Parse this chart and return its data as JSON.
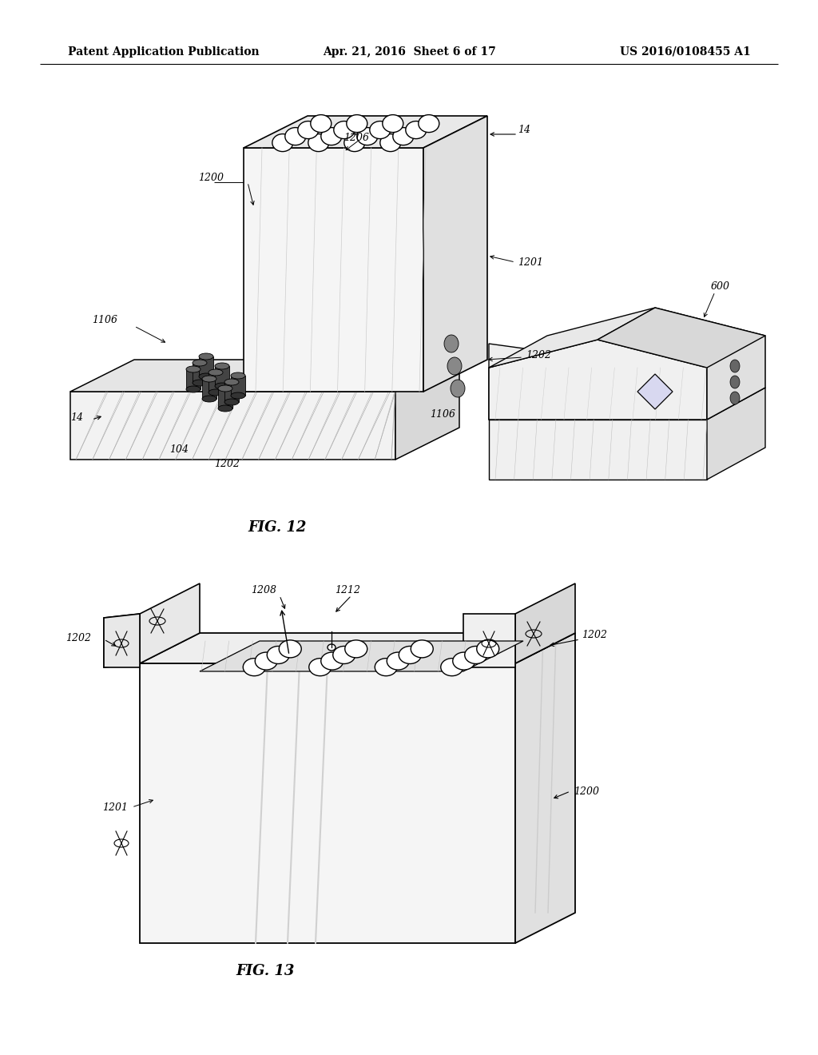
{
  "background_color": "#ffffff",
  "header_left": "Patent Application Publication",
  "header_center": "Apr. 21, 2016  Sheet 6 of 17",
  "header_right": "US 2016/0108455 A1",
  "fig12_caption": "FIG. 12",
  "fig13_caption": "FIG. 13"
}
